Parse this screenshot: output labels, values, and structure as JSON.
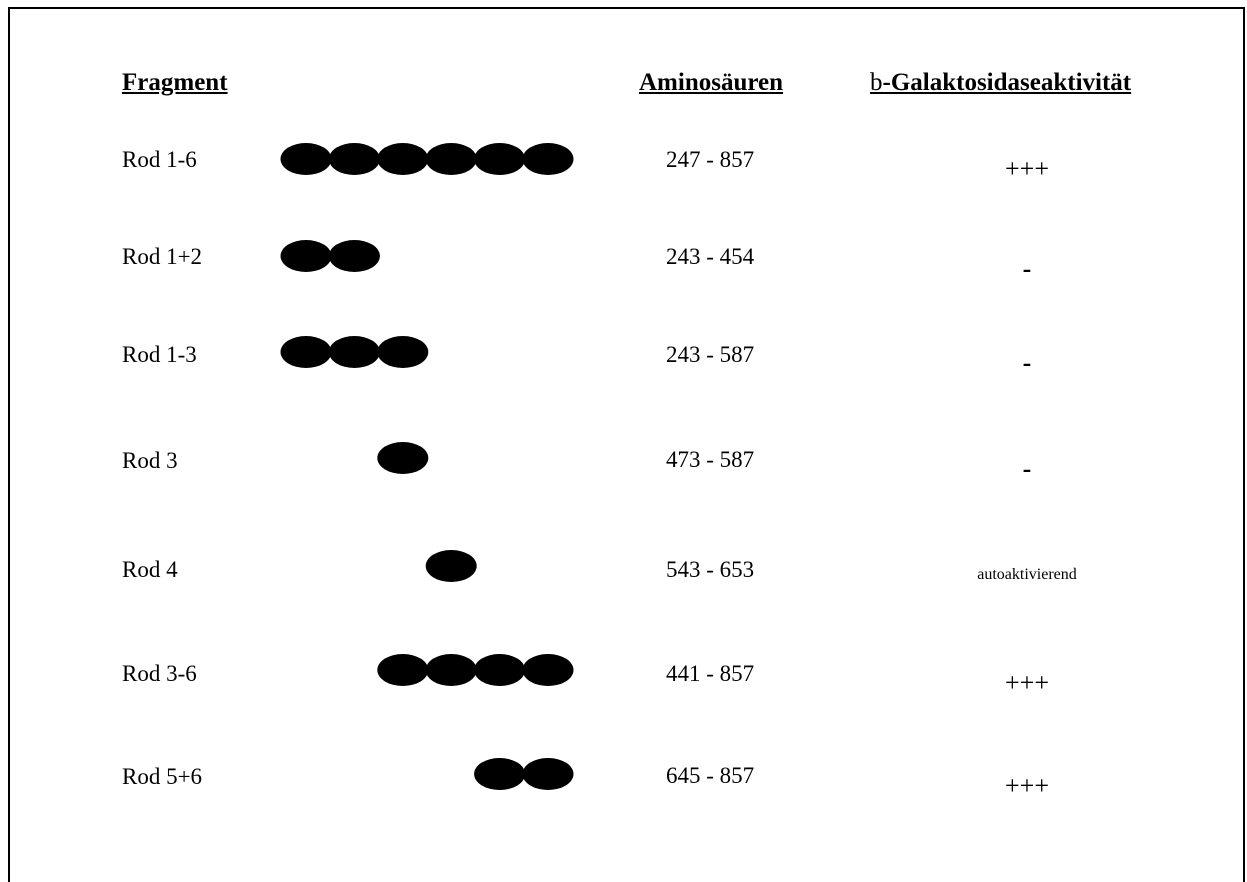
{
  "headers": {
    "fragment": "Fragment",
    "amino_acids": "Aminosäuren",
    "activity_symbol": "b",
    "activity_rest": "-Galaktosidaseaktivität"
  },
  "rows": [
    {
      "name": "Rod 1-6",
      "range": "247 - 857",
      "activity": "+++",
      "rods": [
        1,
        2,
        3,
        4,
        5,
        6
      ]
    },
    {
      "name": "Rod 1+2",
      "range": "243 - 454",
      "activity": "-",
      "rods": [
        1,
        2
      ]
    },
    {
      "name": "Rod 1-3",
      "range": "243 - 587",
      "activity": "-",
      "rods": [
        1,
        2,
        3
      ]
    },
    {
      "name": "Rod 3",
      "range": "473 - 587",
      "activity": "-",
      "rods": [
        3
      ]
    },
    {
      "name": "Rod 4",
      "range": "543 - 653",
      "activity": "autoaktivierend",
      "rods": [
        4
      ]
    },
    {
      "name": "Rod 3-6",
      "range": "441 - 857",
      "activity": "+++",
      "rods": [
        3,
        4,
        5,
        6
      ]
    },
    {
      "name": "Rod 5+6",
      "range": "645 - 857",
      "activity": "+++",
      "rods": [
        5,
        6
      ]
    }
  ]
}
